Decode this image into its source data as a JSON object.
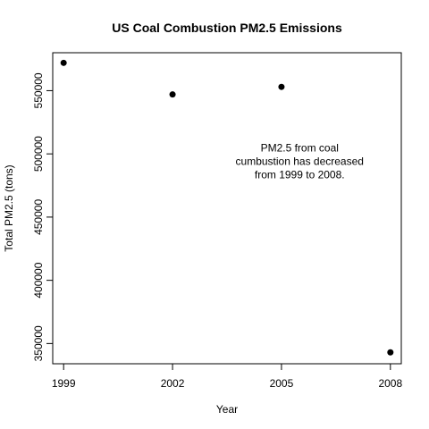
{
  "chart_data": {
    "type": "scatter",
    "title": "US Coal Combustion PM2.5 Emissions",
    "xlabel": "Year",
    "ylabel": "Total PM2.5 (tons)",
    "x": [
      1999,
      2002,
      2005,
      2008
    ],
    "y": [
      572000,
      547000,
      553000,
      343000
    ],
    "x_ticks": [
      "1999",
      "2002",
      "2005",
      "2008"
    ],
    "y_ticks": [
      "350000",
      "400000",
      "450000",
      "500000",
      "550000"
    ],
    "xlim": [
      1998.7,
      2008.3
    ],
    "ylim": [
      334000,
      580000
    ],
    "grid": false,
    "legend": "none",
    "annotation": [
      "PM2.5 from coal",
      "cumbustion has decreased",
      "from 1999 to 2008."
    ],
    "point_color": "#000000"
  }
}
